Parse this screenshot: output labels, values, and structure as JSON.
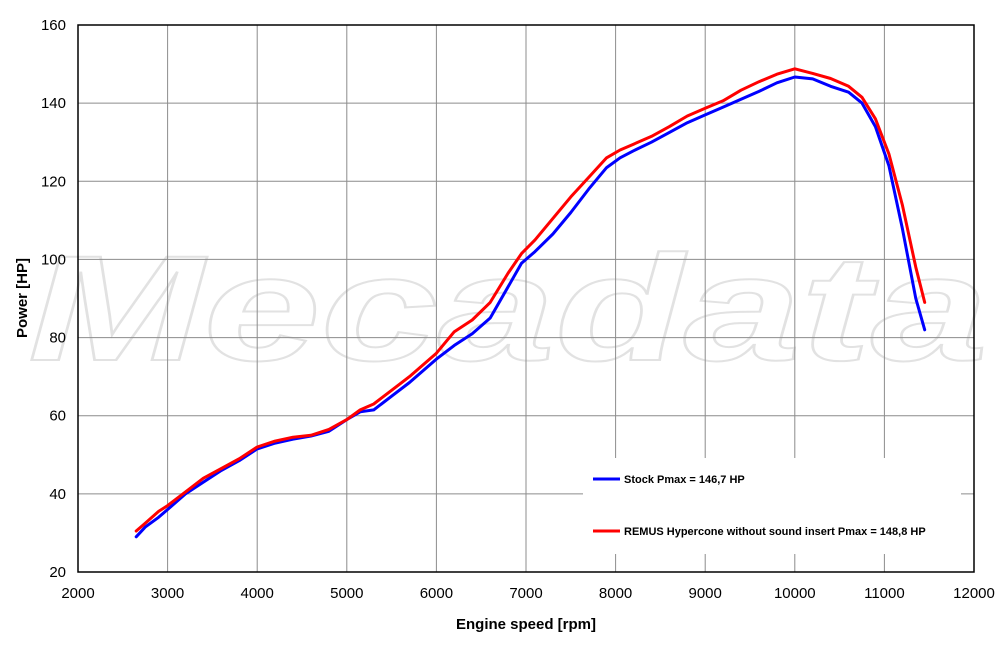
{
  "chart_data": {
    "type": "line",
    "xlabel": "Engine speed [rpm]",
    "ylabel": "Power [HP]",
    "xlim": [
      2000,
      12000
    ],
    "ylim": [
      20,
      160
    ],
    "x_ticks": [
      2000,
      3000,
      4000,
      5000,
      6000,
      7000,
      8000,
      9000,
      10000,
      11000,
      12000
    ],
    "y_ticks": [
      20,
      40,
      60,
      80,
      100,
      120,
      140,
      160
    ],
    "grid": true,
    "legend_position": "bottom-right",
    "watermark": "Mecadata",
    "series": [
      {
        "name": "Stock Pmax = 146,7 HP",
        "color": "#0000ff",
        "points": [
          [
            2650,
            29
          ],
          [
            2750,
            31.5
          ],
          [
            2900,
            34
          ],
          [
            3000,
            36
          ],
          [
            3200,
            40
          ],
          [
            3400,
            43
          ],
          [
            3600,
            46
          ],
          [
            3800,
            48.5
          ],
          [
            4000,
            51.5
          ],
          [
            4200,
            53
          ],
          [
            4400,
            54
          ],
          [
            4600,
            54.8
          ],
          [
            4800,
            56
          ],
          [
            5000,
            59
          ],
          [
            5150,
            61
          ],
          [
            5300,
            61.5
          ],
          [
            5500,
            65
          ],
          [
            5700,
            68.5
          ],
          [
            6000,
            74.5
          ],
          [
            6200,
            78
          ],
          [
            6400,
            81
          ],
          [
            6600,
            85
          ],
          [
            6800,
            93
          ],
          [
            6950,
            99
          ],
          [
            7100,
            102
          ],
          [
            7300,
            106.5
          ],
          [
            7500,
            112
          ],
          [
            7700,
            118
          ],
          [
            7900,
            123.5
          ],
          [
            8050,
            126
          ],
          [
            8200,
            127.8
          ],
          [
            8400,
            130
          ],
          [
            8600,
            132.5
          ],
          [
            8800,
            135
          ],
          [
            9000,
            137
          ],
          [
            9200,
            139
          ],
          [
            9400,
            141
          ],
          [
            9600,
            143
          ],
          [
            9800,
            145.2
          ],
          [
            10000,
            146.7
          ],
          [
            10200,
            146.2
          ],
          [
            10400,
            144.3
          ],
          [
            10600,
            142.8
          ],
          [
            10750,
            140
          ],
          [
            10900,
            134
          ],
          [
            11050,
            124
          ],
          [
            11200,
            108
          ],
          [
            11350,
            90
          ],
          [
            11450,
            82
          ]
        ]
      },
      {
        "name": "REMUS Hypercone without sound insert Pmax =  148,8 HP",
        "color": "#ff0000",
        "points": [
          [
            2650,
            30.5
          ],
          [
            2750,
            32.5
          ],
          [
            2900,
            35.5
          ],
          [
            3000,
            37
          ],
          [
            3200,
            40.5
          ],
          [
            3400,
            44
          ],
          [
            3600,
            46.5
          ],
          [
            3800,
            49
          ],
          [
            4000,
            52
          ],
          [
            4200,
            53.5
          ],
          [
            4400,
            54.5
          ],
          [
            4600,
            55
          ],
          [
            4800,
            56.5
          ],
          [
            5000,
            59
          ],
          [
            5150,
            61.5
          ],
          [
            5300,
            63
          ],
          [
            5500,
            66.5
          ],
          [
            5700,
            70
          ],
          [
            6000,
            76
          ],
          [
            6200,
            81.5
          ],
          [
            6400,
            84.5
          ],
          [
            6600,
            89
          ],
          [
            6800,
            96.5
          ],
          [
            6950,
            101.5
          ],
          [
            7100,
            105
          ],
          [
            7300,
            110.5
          ],
          [
            7500,
            116
          ],
          [
            7700,
            121
          ],
          [
            7900,
            126
          ],
          [
            8050,
            128
          ],
          [
            8200,
            129.5
          ],
          [
            8400,
            131.5
          ],
          [
            8600,
            134
          ],
          [
            8800,
            136.7
          ],
          [
            9000,
            138.7
          ],
          [
            9200,
            140.6
          ],
          [
            9400,
            143.3
          ],
          [
            9600,
            145.5
          ],
          [
            9800,
            147.4
          ],
          [
            10000,
            148.8
          ],
          [
            10200,
            147.6
          ],
          [
            10400,
            146.3
          ],
          [
            10600,
            144.3
          ],
          [
            10750,
            141.5
          ],
          [
            10900,
            136
          ],
          [
            11050,
            127
          ],
          [
            11200,
            114
          ],
          [
            11350,
            98
          ],
          [
            11450,
            89
          ]
        ]
      }
    ]
  }
}
